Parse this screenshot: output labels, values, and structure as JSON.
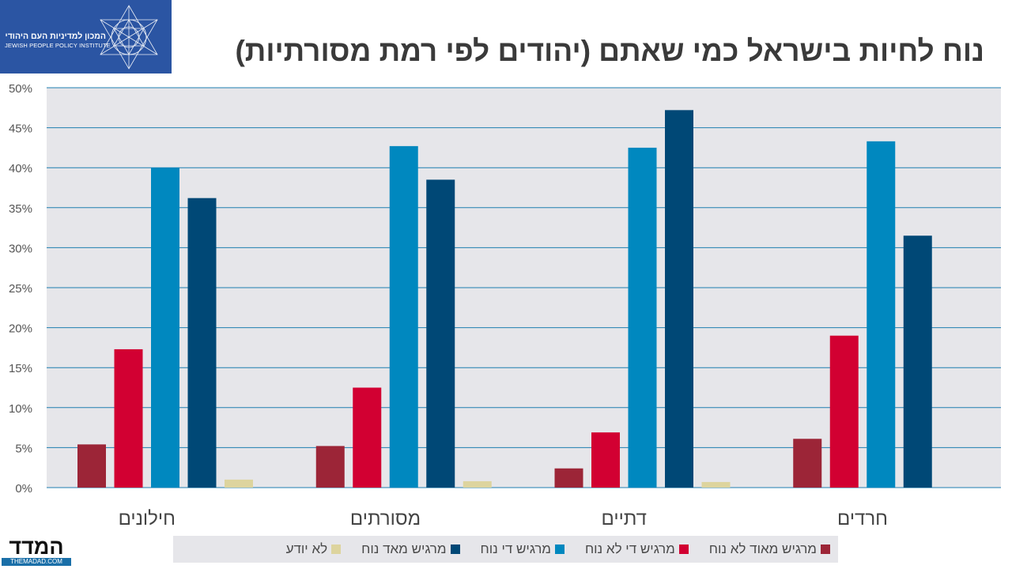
{
  "logo": {
    "hebrew_name": "המכון למדיניות העם היהודי",
    "english_name": "JEWISH PEOPLE POLICY INSTITUTE"
  },
  "title": "נוח לחיות בישראל כמי שאתם (יהודים לפי רמת מסורתיות)",
  "chart_data": {
    "type": "bar",
    "title": "נוח לחיות בישראל כמי שאתם (יהודים לפי רמת מסורתיות)",
    "categories": [
      "חילונים",
      "מסורתים",
      "דתיים",
      "חרדים"
    ],
    "series": [
      {
        "name": "מרגיש מאוד לא נוח",
        "color": "#9c2537",
        "values": [
          5.4,
          5.2,
          2.4,
          6.1
        ]
      },
      {
        "name": "מרגיש די לא נוח",
        "color": "#d20032",
        "values": [
          17.3,
          12.5,
          6.9,
          19.0
        ]
      },
      {
        "name": "מרגיש די נוח",
        "color": "#0088bf",
        "values": [
          40.0,
          42.7,
          42.5,
          43.3
        ]
      },
      {
        "name": "מרגיש מאד נוח",
        "color": "#004876",
        "values": [
          36.2,
          38.5,
          47.2,
          31.5
        ]
      },
      {
        "name": "לא יודע",
        "color": "#ddd49e",
        "values": [
          1.0,
          0.8,
          0.7,
          0
        ]
      }
    ],
    "ylim": [
      0,
      50
    ],
    "yticks": [
      0,
      5,
      10,
      15,
      20,
      25,
      30,
      35,
      40,
      45,
      50
    ],
    "tick_suffix": "%",
    "xlabel": "",
    "ylabel": "",
    "grid": true,
    "legend_position": "bottom"
  },
  "footer": {
    "brand_hebrew": "המדד",
    "brand_url": "THEMADAD.COM"
  }
}
